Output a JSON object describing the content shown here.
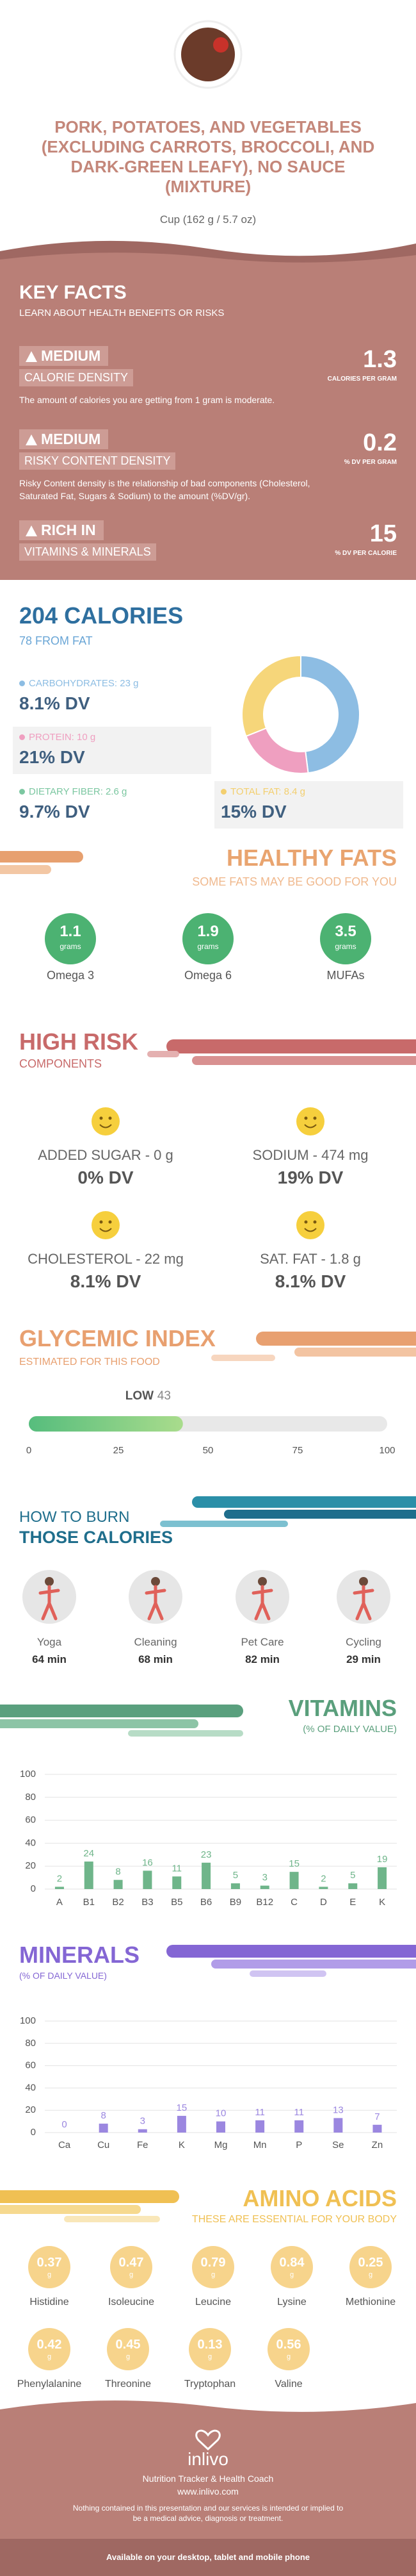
{
  "header": {
    "title": "PORK, POTATOES, AND VEGETABLES (EXCLUDING CARROTS, BROCCOLI, AND DARK-GREEN LEAFY), NO SAUCE (MIXTURE)",
    "serving": "Cup (162 g / 5.7 oz)"
  },
  "key_facts": {
    "title": "KEY FACTS",
    "subtitle": "LEARN ABOUT HEALTH BENEFITS OR RISKS",
    "items": [
      {
        "level": "MEDIUM",
        "label": "CALORIE DENSITY",
        "description": "The amount of calories you are getting from 1 gram is moderate.",
        "value": "1.3",
        "unit": "CALORIES PER GRAM"
      },
      {
        "level": "MEDIUM",
        "label": "RISKY CONTENT DENSITY",
        "description": "Risky Content density is the relationship of bad components (Cholesterol, Saturated Fat, Sugars & Sodium) to the amount (%DV/gr).",
        "value": "0.2",
        "unit": "% DV PER GRAM"
      },
      {
        "level": "RICH IN",
        "label": "VITAMINS & MINERALS",
        "value": "15",
        "unit": "% DV PER CALORIE"
      }
    ]
  },
  "calories": {
    "title": "204 CALORIES",
    "subtitle": "78 FROM FAT",
    "nutrients": [
      {
        "label": "CARBOHYDRATES: 23 g",
        "dv": "8.1% DV",
        "color": "#8dbde3"
      },
      {
        "label": "PROTEIN: 10 g",
        "dv": "21% DV",
        "color": "#ef9fc0"
      },
      {
        "label": "DIETARY FIBER: 2.6 g",
        "dv": "9.7% DV",
        "color": "#7cc7a1"
      },
      {
        "label": "TOTAL FAT: 8.4 g",
        "dv": "15% DV",
        "color": "#f3cf6f"
      }
    ],
    "donut": {
      "values": [
        48,
        21,
        31
      ],
      "colors": [
        "#8dbde3",
        "#ef9fc0",
        "#f6d67a"
      ]
    }
  },
  "healthy_fats": {
    "title": "HEALTHY FATS",
    "subtitle": "SOME FATS MAY BE GOOD FOR YOU",
    "items": [
      {
        "value": "1.1",
        "unit": "grams",
        "name": "Omega 3"
      },
      {
        "value": "1.9",
        "unit": "grams",
        "name": "Omega 6"
      },
      {
        "value": "3.5",
        "unit": "grams",
        "name": "MUFAs"
      }
    ]
  },
  "high_risk": {
    "title": "HIGH RISK",
    "subtitle": "COMPONENTS",
    "items": [
      {
        "label": "ADDED SUGAR - 0 g",
        "dv": "0% DV"
      },
      {
        "label": "SODIUM - 474 mg",
        "dv": "19% DV"
      },
      {
        "label": "CHOLESTEROL - 22 mg",
        "dv": "8.1% DV"
      },
      {
        "label": "SAT. FAT - 1.8 g",
        "dv": "8.1% DV"
      }
    ]
  },
  "glycemic": {
    "title": "GLYCEMIC INDEX",
    "subtitle": "ESTIMATED FOR THIS FOOD",
    "level": "LOW",
    "value": 43,
    "xlim": [
      0,
      100
    ],
    "xticks": [
      0,
      25,
      50,
      75,
      100
    ]
  },
  "burn": {
    "title": "HOW TO BURN",
    "subtitle": "THOSE CALORIES",
    "activities": [
      {
        "name": "Yoga",
        "time": "64 min"
      },
      {
        "name": "Cleaning",
        "time": "68 min"
      },
      {
        "name": "Pet Care",
        "time": "82 min"
      },
      {
        "name": "Cycling",
        "time": "29 min"
      }
    ]
  },
  "chart_data": [
    {
      "type": "bar",
      "title": "VITAMINS",
      "subtitle": "(% OF DAILY VALUE)",
      "categories": [
        "A",
        "B1",
        "B2",
        "B3",
        "B5",
        "B6",
        "B9",
        "B12",
        "C",
        "D",
        "E",
        "K"
      ],
      "values": [
        2,
        24,
        8,
        16,
        11,
        23,
        5,
        3,
        15,
        2,
        5,
        19
      ],
      "color": "#6fb58a",
      "ylim": [
        0,
        100
      ],
      "yticks": [
        0,
        20,
        40,
        60,
        80,
        100
      ],
      "grid": true
    },
    {
      "type": "bar",
      "title": "MINERALS",
      "subtitle": "(% OF DAILY VALUE)",
      "categories": [
        "Ca",
        "Cu",
        "Fe",
        "K",
        "Mg",
        "Mn",
        "P",
        "Se",
        "Zn"
      ],
      "values": [
        0,
        8,
        3,
        15,
        10,
        11,
        11,
        13,
        7
      ],
      "color": "#9b87e0",
      "ylim": [
        0,
        100
      ],
      "yticks": [
        0,
        20,
        40,
        60,
        80,
        100
      ],
      "grid": true
    }
  ],
  "amino_acids": {
    "title": "AMINO ACIDS",
    "subtitle": "THESE ARE ESSENTIAL FOR YOUR BODY",
    "unit": "g",
    "items": [
      {
        "name": "Histidine",
        "value": "0.37"
      },
      {
        "name": "Isoleucine",
        "value": "0.47"
      },
      {
        "name": "Leucine",
        "value": "0.79"
      },
      {
        "name": "Lysine",
        "value": "0.84"
      },
      {
        "name": "Methionine",
        "value": "0.25"
      },
      {
        "name": "Phenylalanine",
        "value": "0.42"
      },
      {
        "name": "Threonine",
        "value": "0.45"
      },
      {
        "name": "Tryptophan",
        "value": "0.13"
      },
      {
        "name": "Valine",
        "value": "0.56"
      }
    ]
  },
  "footer": {
    "brand": "inlivo",
    "tagline": "Nutrition Tracker & Health Coach",
    "url": "www.inlivo.com",
    "disclaimer": "Nothing contained in this presentation and our services is intended or implied to be a medical advice, diagnosis or treatment.",
    "availability": "Available on your desktop, tablet and mobile phone"
  }
}
